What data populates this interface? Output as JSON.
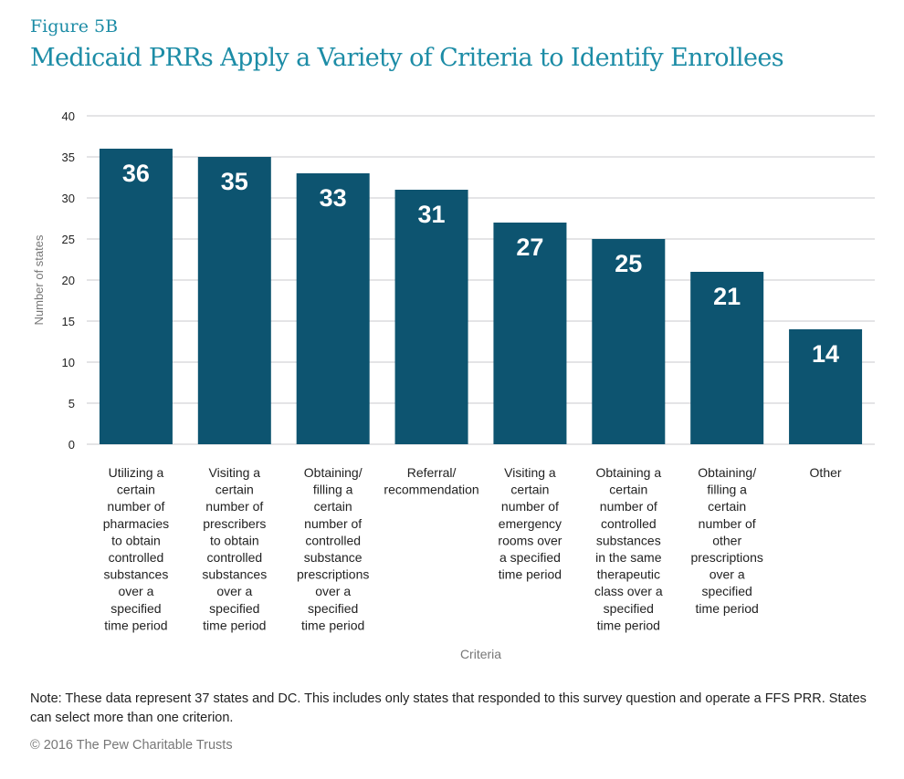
{
  "figure_label": "Figure 5B",
  "title": "Medicaid PRRs Apply a Variety of Criteria to Identify Enrollees",
  "note": "Note: These data represent 37 states and DC. This includes only states that responded to this survey question and operate a FFS PRR. States can select more than one criterion.",
  "copyright": "© 2016 The Pew Charitable Trusts",
  "chart_data": {
    "type": "bar",
    "xlabel": "Criteria",
    "ylabel": "Number of states",
    "ylim": [
      0,
      40
    ],
    "yticks": [
      0,
      5,
      10,
      15,
      20,
      25,
      30,
      35,
      40
    ],
    "grid": true,
    "bar_color": "#0d5470",
    "categories": [
      [
        "Utilizing a",
        "certain",
        "number of",
        "pharmacies",
        "to obtain",
        "controlled",
        "substances",
        "over a",
        "specified",
        "time period"
      ],
      [
        "Visiting a",
        "certain",
        "number of",
        "prescribers",
        "to obtain",
        "controlled",
        "substances",
        "over a",
        "specified",
        "time period"
      ],
      [
        "Obtaining/",
        "filling a",
        "certain",
        "number of",
        "controlled",
        "substance",
        "prescriptions",
        "over a",
        "specified",
        "time period"
      ],
      [
        "Referral/",
        "recommendation"
      ],
      [
        "Visiting a",
        "certain",
        "number of",
        "emergency",
        "rooms over",
        "a specified",
        "time period"
      ],
      [
        "Obtaining a",
        "certain",
        "number of",
        "controlled",
        "substances",
        "in the same",
        "therapeutic",
        "class over a",
        "specified",
        "time period"
      ],
      [
        "Obtaining/",
        "filling a",
        "certain",
        "number of",
        "other",
        "prescriptions",
        "over a",
        "specified",
        "time period"
      ],
      [
        "Other"
      ]
    ],
    "values": [
      36,
      35,
      33,
      31,
      27,
      25,
      21,
      14
    ]
  }
}
